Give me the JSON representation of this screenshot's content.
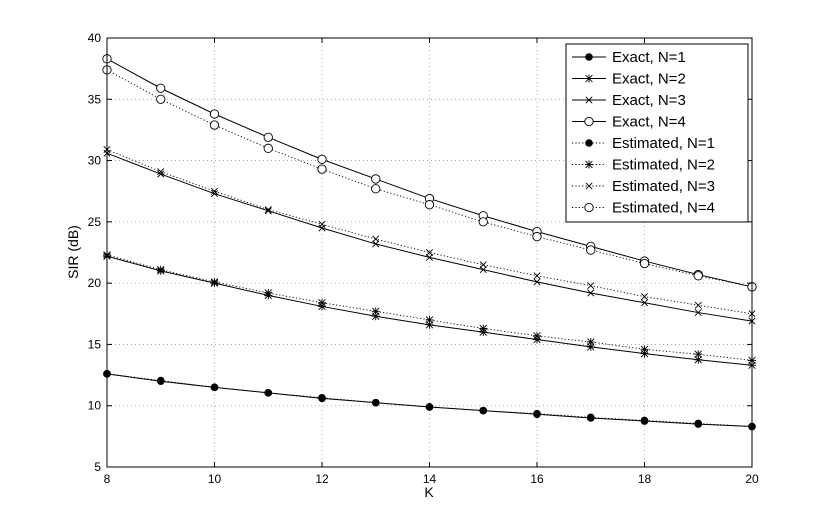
{
  "chart_data": {
    "type": "line",
    "xlabel": "K",
    "ylabel": "SIR (dB)",
    "xlim": [
      8,
      20
    ],
    "ylim": [
      5,
      40
    ],
    "xticks": [
      "8",
      "10",
      "12",
      "14",
      "16",
      "18",
      "20"
    ],
    "yticks": [
      "5",
      "10",
      "15",
      "20",
      "25",
      "30",
      "35",
      "40"
    ],
    "grid": true,
    "legend_position": "top-right",
    "x": [
      8,
      9,
      10,
      11,
      12,
      13,
      14,
      15,
      16,
      17,
      18,
      19,
      20
    ],
    "series": [
      {
        "name": "Exact, N=1",
        "style": "solid",
        "marker": "filled-circle",
        "values": [
          12.6,
          12.0,
          11.5,
          11.05,
          10.6,
          10.25,
          9.9,
          9.6,
          9.3,
          9.0,
          8.75,
          8.5,
          8.3
        ]
      },
      {
        "name": "Exact, N=2",
        "style": "solid",
        "marker": "star",
        "values": [
          22.2,
          21.0,
          20.0,
          19.0,
          18.1,
          17.3,
          16.6,
          16.0,
          15.4,
          14.8,
          14.25,
          13.75,
          13.3
        ]
      },
      {
        "name": "Exact, N=3",
        "style": "solid",
        "marker": "x",
        "values": [
          30.6,
          28.9,
          27.3,
          25.9,
          24.5,
          23.2,
          22.1,
          21.1,
          20.1,
          19.2,
          18.4,
          17.6,
          16.9
        ]
      },
      {
        "name": "Exact, N=4",
        "style": "solid",
        "marker": "open-circle",
        "values": [
          38.3,
          35.9,
          33.8,
          31.9,
          30.1,
          28.5,
          26.9,
          25.5,
          24.2,
          23.0,
          21.8,
          20.7,
          19.7
        ]
      },
      {
        "name": "Estimated, N=1",
        "style": "dotted",
        "marker": "filled-circle",
        "values": [
          12.6,
          12.05,
          11.5,
          11.05,
          10.65,
          10.25,
          9.9,
          9.6,
          9.35,
          9.05,
          8.8,
          8.55,
          8.3
        ]
      },
      {
        "name": "Estimated, N=2",
        "style": "dotted",
        "marker": "star",
        "values": [
          22.3,
          21.1,
          20.1,
          19.2,
          18.4,
          17.7,
          17.0,
          16.3,
          15.7,
          15.2,
          14.6,
          14.2,
          13.7
        ]
      },
      {
        "name": "Estimated, N=3",
        "style": "dotted",
        "marker": "x",
        "values": [
          30.9,
          29.1,
          27.5,
          26.0,
          24.8,
          23.6,
          22.5,
          21.5,
          20.6,
          19.8,
          18.9,
          18.2,
          17.5
        ]
      },
      {
        "name": "Estimated, N=4",
        "style": "dotted",
        "marker": "open-circle",
        "values": [
          37.4,
          35.0,
          32.9,
          31.0,
          29.3,
          27.7,
          26.4,
          25.0,
          23.8,
          22.7,
          21.6,
          20.6,
          19.7
        ]
      }
    ]
  }
}
